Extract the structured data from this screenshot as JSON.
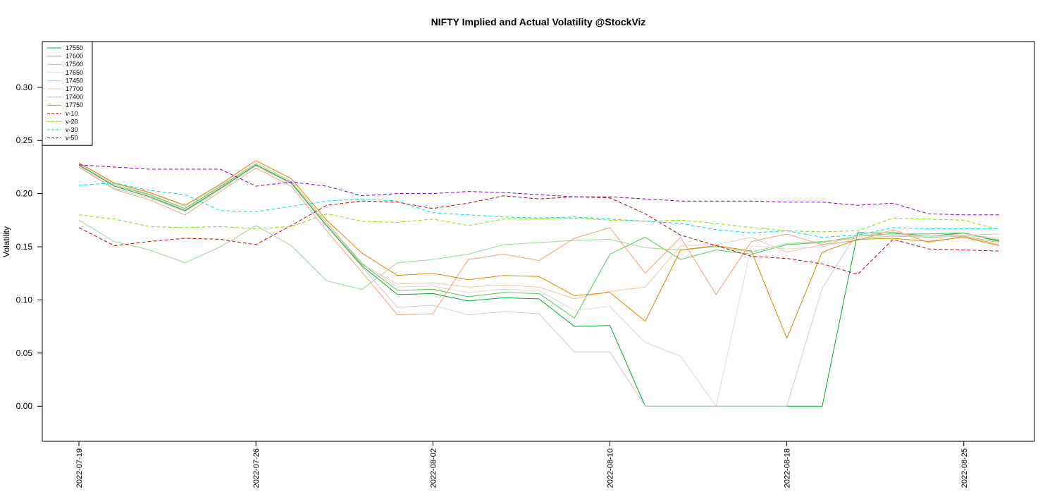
{
  "chart_data": {
    "type": "line",
    "title": "NIFTY Implied and Actual Volatility @StockViz",
    "xlabel": "",
    "ylabel": "Volatility",
    "ylim": [
      -0.033,
      0.343
    ],
    "grid": false,
    "legend_position": "top-left",
    "yticks": [
      0.0,
      0.05,
      0.1,
      0.15,
      0.2,
      0.25,
      0.3
    ],
    "ytick_labels": [
      "0.00",
      "0.05",
      "0.10",
      "0.15",
      "0.20",
      "0.25",
      "0.30"
    ],
    "xtick_labels": [
      "2022-07-19",
      "2022-07-26",
      "2022-08-02",
      "2022-08-10",
      "2022-08-18",
      "2022-08-25"
    ],
    "xtick_index": [
      0,
      5,
      10,
      15,
      20,
      25
    ],
    "x": [
      "2022-07-19",
      "2022-07-20",
      "2022-07-21",
      "2022-07-22",
      "2022-07-25",
      "2022-07-26",
      "2022-07-27",
      "2022-07-28",
      "2022-07-29",
      "2022-08-01",
      "2022-08-02",
      "2022-08-03",
      "2022-08-04",
      "2022-08-05",
      "2022-08-08",
      "2022-08-10",
      "2022-08-11",
      "2022-08-12",
      "2022-08-16",
      "2022-08-17",
      "2022-08-18",
      "2022-08-19",
      "2022-08-22",
      "2022-08-23",
      "2022-08-24",
      "2022-08-25",
      "2022-08-26"
    ],
    "series": [
      {
        "name": "17550",
        "color": "#00aa33",
        "dash": "",
        "values": [
          0.227,
          0.207,
          0.197,
          0.184,
          0.205,
          0.227,
          0.21,
          0.17,
          0.132,
          0.105,
          0.106,
          0.099,
          0.102,
          0.101,
          0.075,
          0.076,
          0.0,
          0.0,
          0.0,
          0.0,
          0.0,
          0.0,
          0.163,
          0.163,
          0.16,
          0.163,
          0.155
        ]
      },
      {
        "name": "17600",
        "color": "#55c855",
        "dash": "",
        "values": [
          0.228,
          0.208,
          0.199,
          0.186,
          0.207,
          0.228,
          0.211,
          0.172,
          0.134,
          0.109,
          0.11,
          0.103,
          0.107,
          0.106,
          0.083,
          0.143,
          0.159,
          0.138,
          0.147,
          0.143,
          0.152,
          0.154,
          0.16,
          0.162,
          0.162,
          0.163,
          0.156
        ]
      },
      {
        "name": "17500",
        "color": "#99d699",
        "dash": "",
        "values": [
          0.175,
          0.155,
          0.147,
          0.135,
          0.15,
          0.17,
          0.151,
          0.118,
          0.11,
          0.135,
          0.138,
          0.143,
          0.152,
          0.154,
          0.156,
          0.157,
          0.149,
          0.147,
          0.15,
          0.145,
          0.153,
          0.155,
          0.158,
          0.16,
          0.159,
          0.16,
          0.154
        ]
      },
      {
        "name": "17650",
        "color": "#d9d9d9",
        "dash": "",
        "values": [
          0.229,
          0.209,
          0.2,
          0.188,
          0.208,
          0.229,
          0.212,
          0.173,
          0.135,
          0.112,
          0.113,
          0.107,
          0.11,
          0.109,
          0.09,
          0.094,
          0.06,
          0.047,
          0.0,
          0.151,
          0.148,
          0.15,
          0.158,
          0.162,
          0.16,
          0.162,
          0.158
        ]
      },
      {
        "name": "17450",
        "color": "#cccccc",
        "dash": "",
        "values": [
          0.226,
          0.205,
          0.196,
          0.183,
          0.204,
          0.226,
          0.209,
          0.169,
          0.131,
          0.093,
          0.095,
          0.086,
          0.089,
          0.087,
          0.051,
          0.051,
          0.0,
          0.0,
          0.0,
          0.0,
          0.0,
          0.111,
          0.164,
          0.161,
          0.16,
          0.161,
          0.162
        ]
      },
      {
        "name": "17700",
        "color": "#f2c4a6",
        "dash": "",
        "values": [
          0.228,
          0.208,
          0.198,
          0.185,
          0.206,
          0.228,
          0.211,
          0.172,
          0.133,
          0.115,
          0.116,
          0.112,
          0.114,
          0.112,
          0.101,
          0.108,
          0.112,
          0.151,
          0.152,
          0.159,
          0.145,
          0.152,
          0.16,
          0.164,
          0.158,
          0.161,
          0.157
        ]
      },
      {
        "name": "17400",
        "color": "#eea37c",
        "dash": "",
        "values": [
          0.225,
          0.204,
          0.194,
          0.18,
          0.202,
          0.224,
          0.207,
          0.165,
          0.126,
          0.086,
          0.087,
          0.138,
          0.143,
          0.137,
          0.158,
          0.168,
          0.125,
          0.159,
          0.105,
          0.155,
          0.162,
          0.152,
          0.156,
          0.166,
          0.154,
          0.16,
          0.152
        ]
      },
      {
        "name": "17750",
        "color": "#dd8800",
        "dash": "",
        "values": [
          0.229,
          0.21,
          0.201,
          0.189,
          0.209,
          0.231,
          0.214,
          0.175,
          0.144,
          0.123,
          0.125,
          0.119,
          0.123,
          0.122,
          0.104,
          0.107,
          0.08,
          0.147,
          0.151,
          0.146,
          0.064,
          0.145,
          0.157,
          0.158,
          0.155,
          0.159,
          0.151
        ]
      },
      {
        "name": "v-10",
        "color": "#cc0000",
        "dash": "5,3",
        "values": [
          0.168,
          0.151,
          0.155,
          0.158,
          0.157,
          0.152,
          0.17,
          0.189,
          0.193,
          0.192,
          0.186,
          0.191,
          0.198,
          0.195,
          0.197,
          0.196,
          0.181,
          0.161,
          0.151,
          0.141,
          0.139,
          0.134,
          0.124,
          0.157,
          0.148,
          0.147,
          0.146
        ]
      },
      {
        "name": "v-20",
        "color": "#88dd00",
        "dash": "5,3",
        "values": [
          0.18,
          0.176,
          0.169,
          0.168,
          0.169,
          0.167,
          0.169,
          0.181,
          0.174,
          0.173,
          0.176,
          0.17,
          0.176,
          0.176,
          0.177,
          0.175,
          0.174,
          0.175,
          0.172,
          0.168,
          0.165,
          0.164,
          0.165,
          0.177,
          0.176,
          0.175,
          0.166
        ]
      },
      {
        "name": "v-30",
        "color": "#00dddd",
        "dash": "5,3",
        "values": [
          0.208,
          0.21,
          0.203,
          0.199,
          0.184,
          0.183,
          0.188,
          0.193,
          0.195,
          0.193,
          0.182,
          0.18,
          0.178,
          0.177,
          0.178,
          0.176,
          0.174,
          0.172,
          0.166,
          0.163,
          0.165,
          0.159,
          0.161,
          0.168,
          0.167,
          0.167,
          0.167
        ]
      },
      {
        "name": "v-50",
        "color": "#8800cc",
        "dash": "5,3",
        "values": [
          0.227,
          0.225,
          0.223,
          0.223,
          0.223,
          0.207,
          0.211,
          0.207,
          0.198,
          0.2,
          0.2,
          0.202,
          0.201,
          0.199,
          0.197,
          0.197,
          0.195,
          0.193,
          0.193,
          0.193,
          0.192,
          0.192,
          0.189,
          0.191,
          0.181,
          0.18,
          0.18
        ]
      }
    ]
  }
}
